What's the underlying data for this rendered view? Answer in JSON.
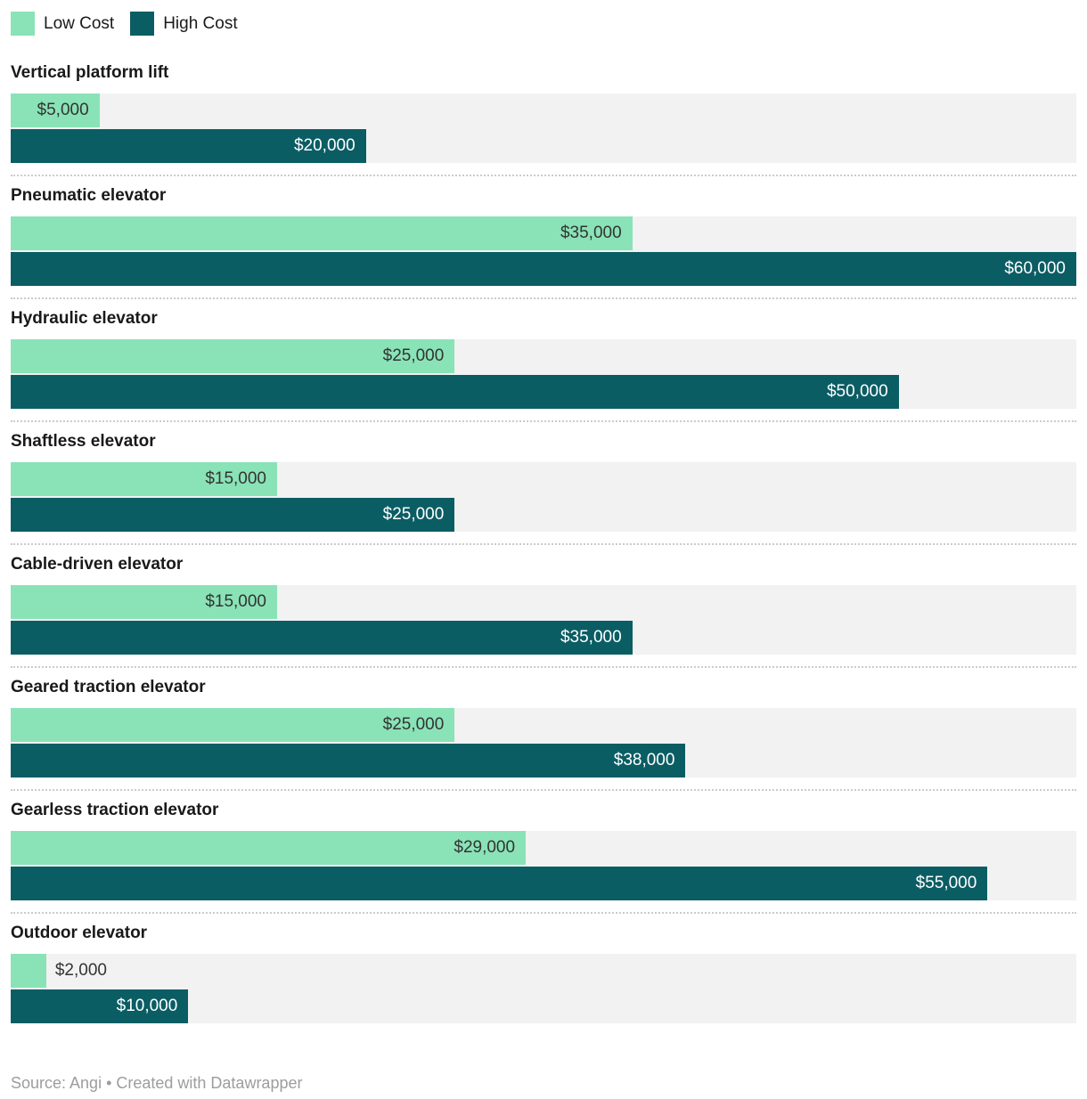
{
  "legend": {
    "items": [
      {
        "label": "Low Cost",
        "color_key": "low"
      },
      {
        "label": "High Cost",
        "color_key": "high"
      }
    ]
  },
  "colors": {
    "low": "#89e3b7",
    "high": "#0b5d64",
    "track": "#f2f2f2",
    "label_on_low": "#333333",
    "label_on_high": "#ffffff",
    "divider": "#cbcbcb"
  },
  "footer": {
    "source_note": "Source: Angi • Created with Datawrapper"
  },
  "chart_data": {
    "type": "bar",
    "orientation": "horizontal",
    "title": "",
    "categories": [
      "Vertical platform lift",
      "Pneumatic elevator",
      "Hydraulic elevator",
      "Shaftless elevator",
      "Cable-driven elevator",
      "Geared traction elevator",
      "Gearless traction elevator",
      "Outdoor elevator"
    ],
    "series": [
      {
        "name": "Low Cost",
        "values": [
          5000,
          35000,
          25000,
          15000,
          15000,
          25000,
          29000,
          2000
        ],
        "labels": [
          "$5,000",
          "$35,000",
          "$25,000",
          "$15,000",
          "$15,000",
          "$25,000",
          "$29,000",
          "$2,000"
        ]
      },
      {
        "name": "High Cost",
        "values": [
          20000,
          60000,
          50000,
          25000,
          35000,
          38000,
          55000,
          10000
        ],
        "labels": [
          "$20,000",
          "$60,000",
          "$50,000",
          "$25,000",
          "$35,000",
          "$38,000",
          "$55,000",
          "$10,000"
        ]
      }
    ],
    "xlim": [
      0,
      60000
    ],
    "legend_position": "top-left",
    "grid": false
  }
}
